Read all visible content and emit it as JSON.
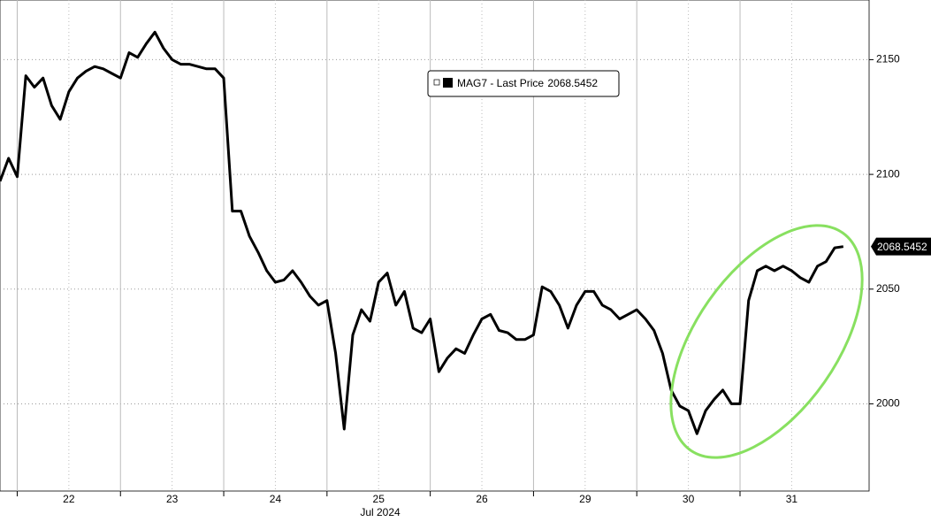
{
  "chart_data": {
    "type": "line",
    "x_label": "Jul 2024",
    "series": [
      {
        "name": "MAG7 - Last Price",
        "color": "#000000",
        "values": [
          2097,
          2107,
          2099,
          2143,
          2138,
          2142,
          2130,
          2124,
          2136,
          2142,
          2145,
          2147,
          2146,
          2144,
          2142,
          2153,
          2151,
          2157,
          2162,
          2155,
          2150,
          2148,
          2148,
          2147,
          2146,
          2146,
          2142,
          2084,
          2084,
          2073,
          2066,
          2058,
          2053,
          2054,
          2058,
          2053,
          2047,
          2043,
          2045,
          2022,
          1989,
          2030,
          2041,
          2036,
          2053,
          2057,
          2043,
          2049,
          2033,
          2031,
          2037,
          2014,
          2020,
          2024,
          2022,
          2030,
          2037,
          2039,
          2032,
          2031,
          2028,
          2028,
          2030,
          2051,
          2049,
          2043,
          2033,
          2043,
          2049,
          2049,
          2043,
          2041,
          2037,
          2039,
          2041,
          2037,
          2032,
          2022,
          2006,
          1999,
          1997,
          1987,
          1997,
          2002,
          2006,
          2000,
          2000,
          2045,
          2058,
          2060,
          2058,
          2060,
          2058,
          2055,
          2053,
          2060,
          2062,
          2068,
          2068.5452
        ]
      }
    ],
    "xlim": [
      0,
      101
    ],
    "xticks": [
      {
        "value": 8,
        "label": "22"
      },
      {
        "value": 20,
        "label": "23"
      },
      {
        "value": 32,
        "label": "24"
      },
      {
        "value": 44,
        "label": "25"
      },
      {
        "value": 56,
        "label": "26"
      },
      {
        "value": 68,
        "label": "29"
      },
      {
        "value": 80,
        "label": "30"
      },
      {
        "value": 92,
        "label": "31"
      }
    ],
    "ylim": [
      1962,
      2176
    ],
    "yticks": [
      2000,
      2050,
      2100,
      2150
    ],
    "grid": true
  }
}
